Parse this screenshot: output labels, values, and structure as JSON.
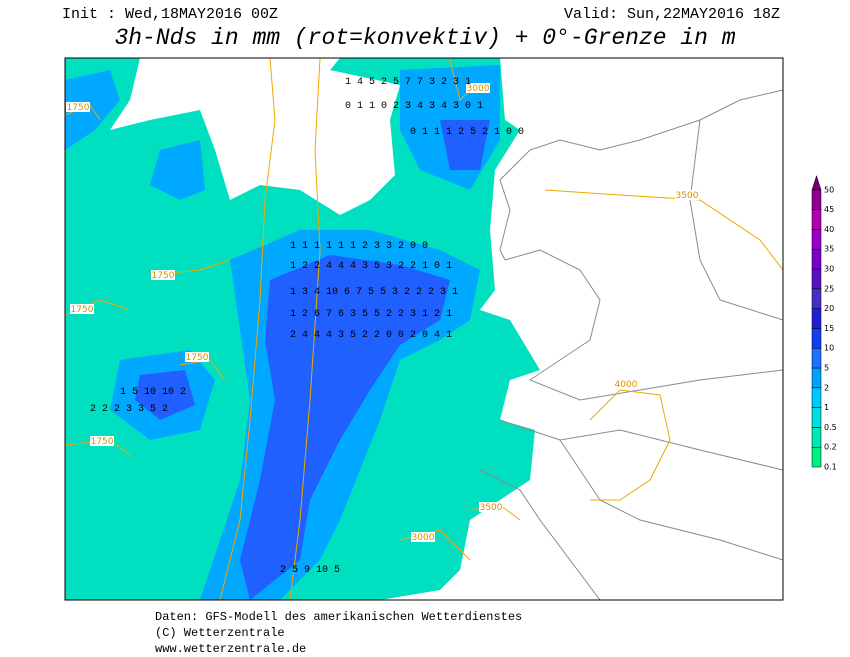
{
  "header": {
    "init": "Init : Wed,18MAY2016 00Z",
    "valid": "Valid: Sun,22MAY2016 18Z",
    "title": "3h-Nds in mm (rot=konvektiv) + 0°-Grenze in m"
  },
  "legend": {
    "labels": [
      "0.1",
      "0.2",
      "0.5",
      "1",
      "2",
      "5",
      "10",
      "15",
      "20",
      "25",
      "30",
      "35",
      "40",
      "45",
      "50"
    ],
    "colors": [
      "#00f080",
      "#00e8b0",
      "#00e0e0",
      "#00c8ff",
      "#00a0ff",
      "#2070ff",
      "#1040f0",
      "#2020d0",
      "#4030c8",
      "#5a10c0",
      "#7800c8",
      "#9800c8",
      "#b000b0",
      "#900090",
      "#700070"
    ]
  },
  "contour_labels": [
    "3500",
    "4000",
    "3000",
    "1750",
    "1750",
    "1750",
    "1750",
    "1750",
    "3500",
    "3000"
  ],
  "grid_rows": [
    "1 4 5 2 5 7 7 3 2 3 1",
    "0 1 1 0 2 3 4 3 4 3 0 1",
    "0 1 1 1 2 5 2 1 0 0",
    "1 1 1 1 1 1 2 3 3 2 0 0",
    "1 2 2 4 4 4 3 5 3 2 2 1 0 1",
    "1 3 4 10 6 7 5 5 3 2 2 2 3 1",
    "1 2 6 7 6 3 5 5 2 2 3 1 2 1",
    "2 4 4 4 3 5 2 2 0 0 2 0 4 1",
    "1 5 10 10 2",
    "2 2 2 3 3 5 2",
    "2 5 9 10 5"
  ],
  "footer": {
    "line1": "Daten: GFS-Modell des amerikanischen Wetterdienstes",
    "line2": "(C) Wetterzentrale",
    "line3": "www.wetterzentrale.de"
  }
}
